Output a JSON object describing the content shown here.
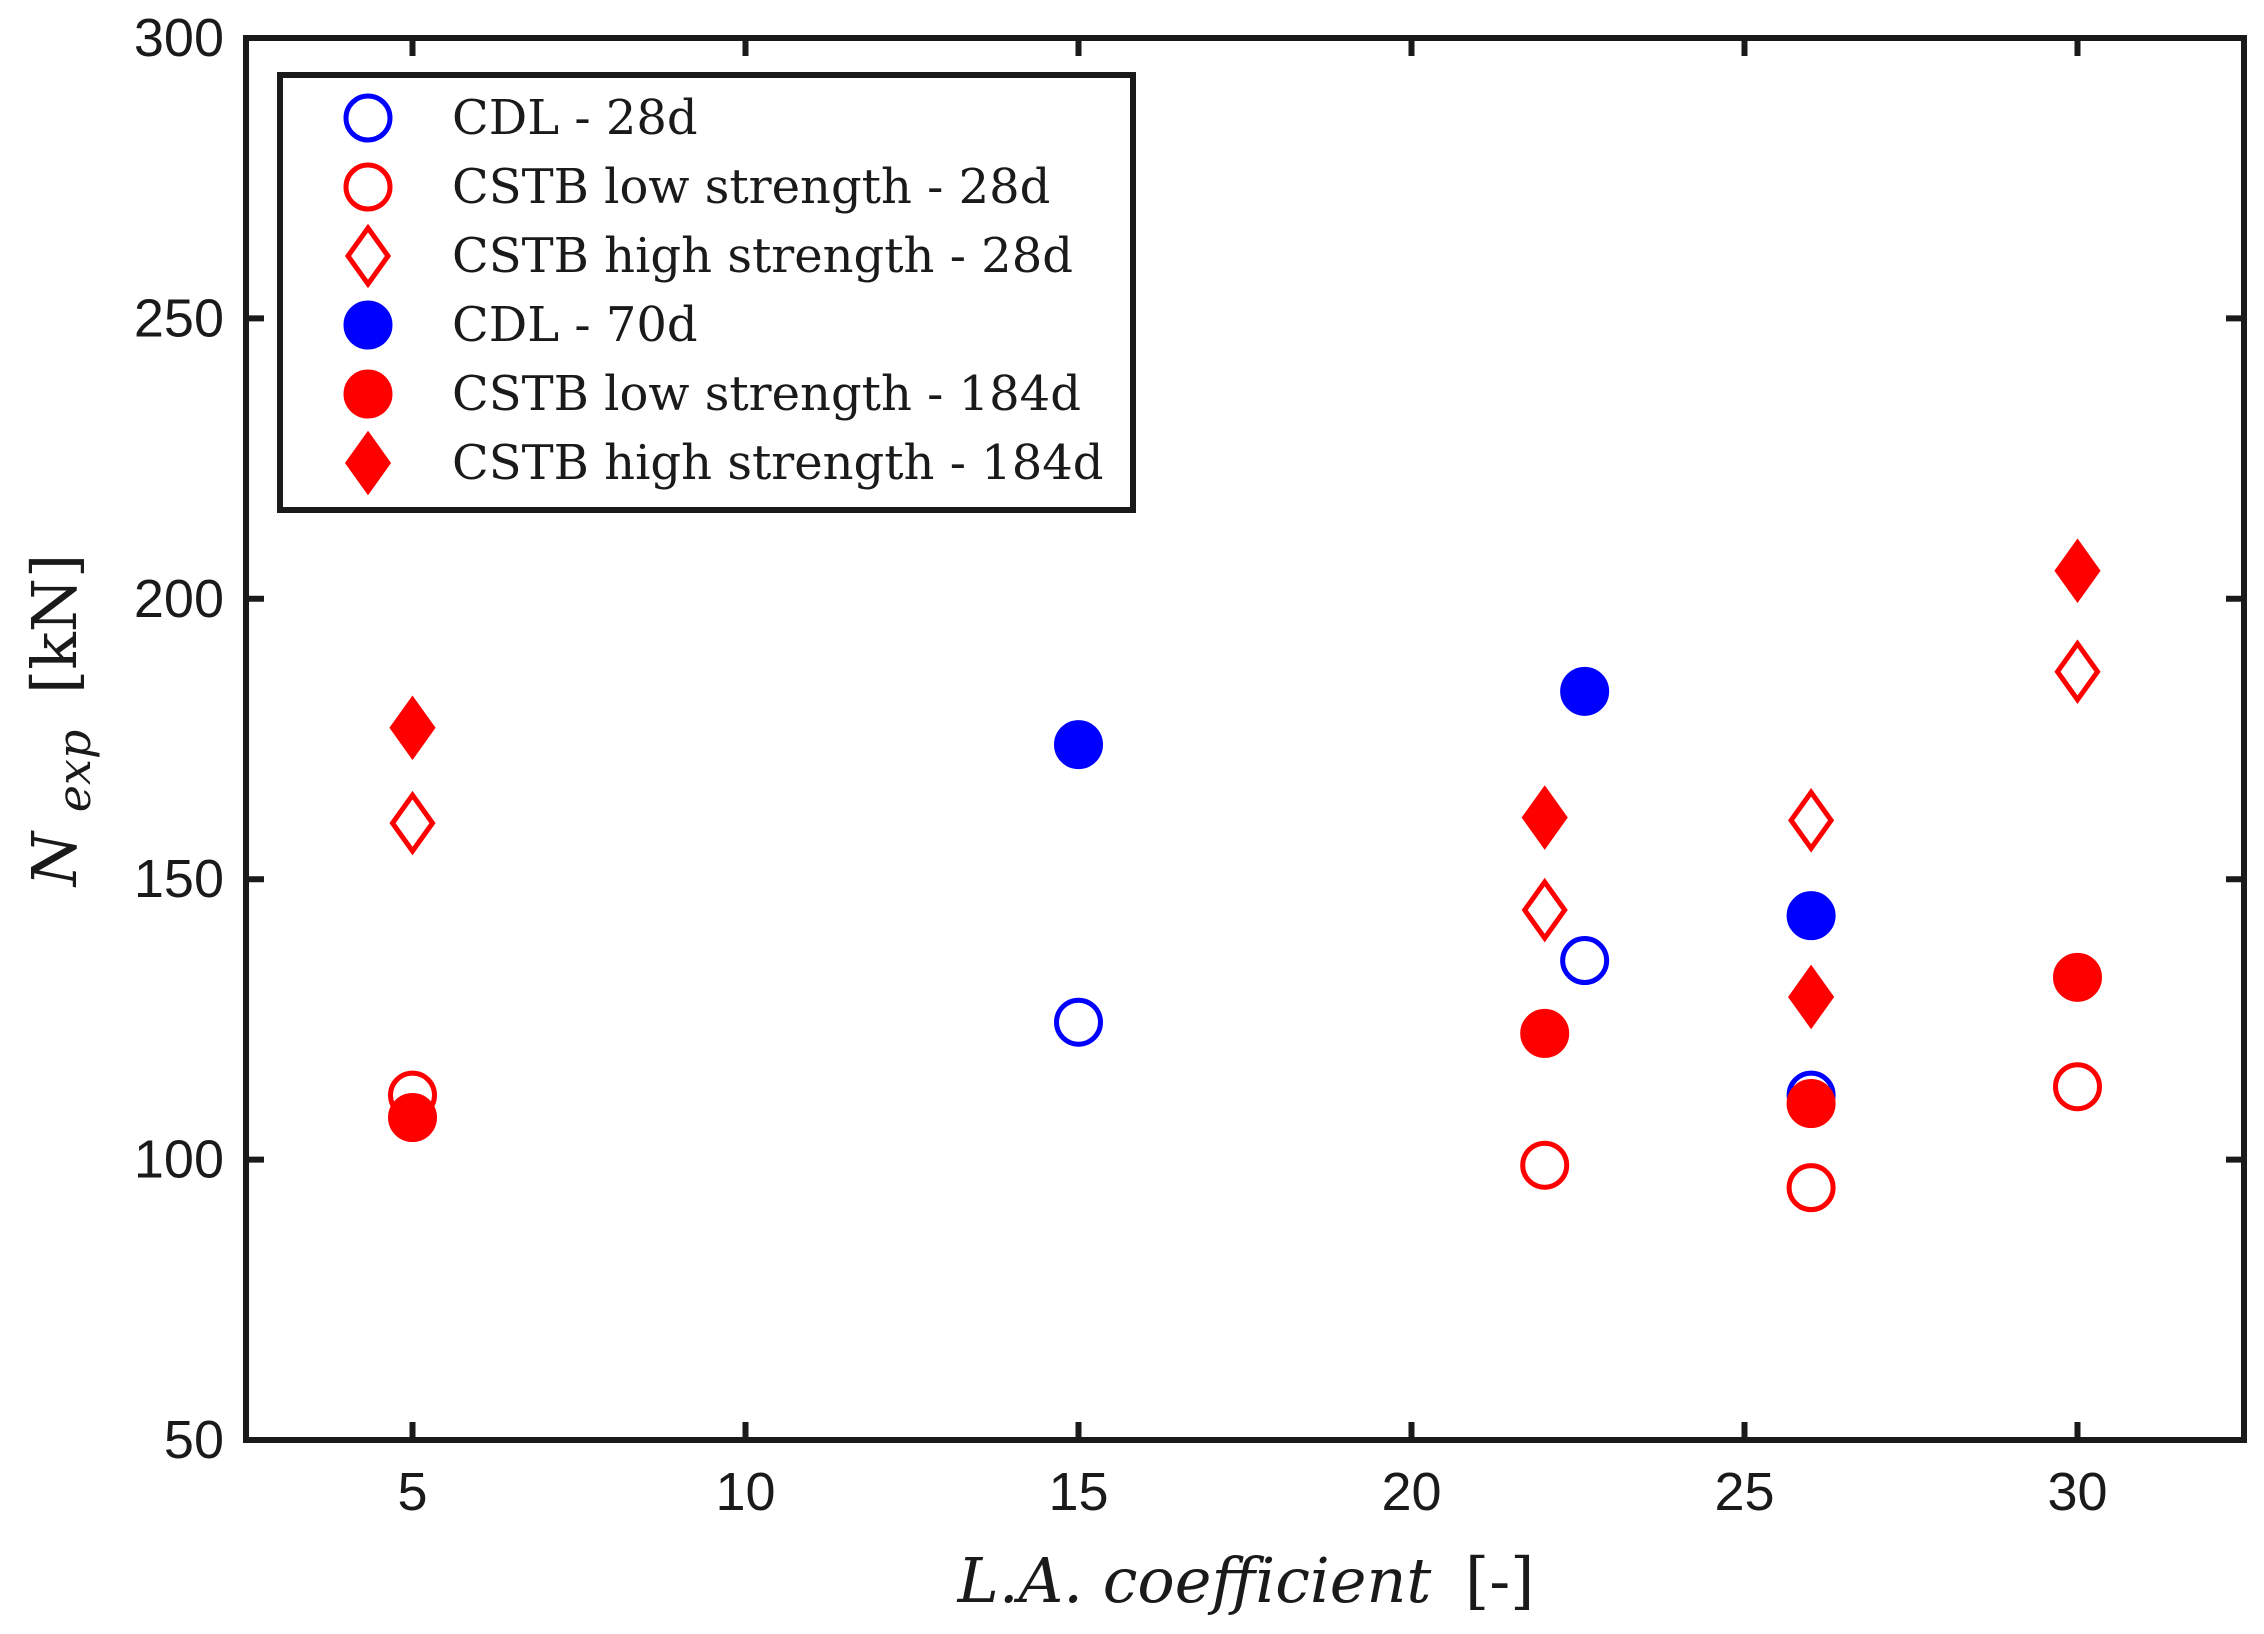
{
  "chart_data": {
    "type": "scatter",
    "xlabel_main": "L.A. coefficient",
    "xlabel_unit": "[-]",
    "ylabel_symbol": "N",
    "ylabel_subscript": "exp",
    "ylabel_unit": "[kN]",
    "xlim": [
      2.5,
      32.5
    ],
    "ylim": [
      50,
      300
    ],
    "xticks": [
      5,
      10,
      15,
      20,
      25,
      30
    ],
    "yticks": [
      50,
      100,
      150,
      200,
      250,
      300
    ],
    "grid": false,
    "legend_position": "top-left",
    "series": [
      {
        "name": "CDL - 28d",
        "color": "#0000ff",
        "marker": "circle",
        "filled": false,
        "points": [
          [
            15,
            124.5
          ],
          [
            22.6,
            135.5
          ],
          [
            26,
            111.5
          ]
        ]
      },
      {
        "name": "CSTB low strength - 28d",
        "color": "#ff0000",
        "marker": "circle",
        "filled": false,
        "points": [
          [
            5,
            111.5
          ],
          [
            22,
            99
          ],
          [
            26,
            95
          ],
          [
            30,
            113
          ]
        ]
      },
      {
        "name": "CSTB high strength - 28d",
        "color": "#ff0000",
        "marker": "diamond",
        "filled": false,
        "points": [
          [
            5,
            160
          ],
          [
            22,
            144.5
          ],
          [
            26,
            160.5
          ],
          [
            30,
            187
          ]
        ]
      },
      {
        "name": "CDL - 70d",
        "color": "#0000ff",
        "marker": "circle",
        "filled": true,
        "points": [
          [
            15,
            174
          ],
          [
            22.6,
            183.5
          ],
          [
            26,
            143.5
          ]
        ]
      },
      {
        "name": "CSTB low strength - 184d",
        "color": "#ff0000",
        "marker": "circle",
        "filled": true,
        "points": [
          [
            5,
            107.5
          ],
          [
            22,
            122.5
          ],
          [
            26,
            110
          ],
          [
            30,
            132.5
          ]
        ]
      },
      {
        "name": "CSTB high strength - 184d",
        "color": "#ff0000",
        "marker": "diamond",
        "filled": true,
        "points": [
          [
            5,
            177
          ],
          [
            22,
            161
          ],
          [
            26,
            129
          ],
          [
            30,
            205
          ]
        ]
      }
    ]
  }
}
